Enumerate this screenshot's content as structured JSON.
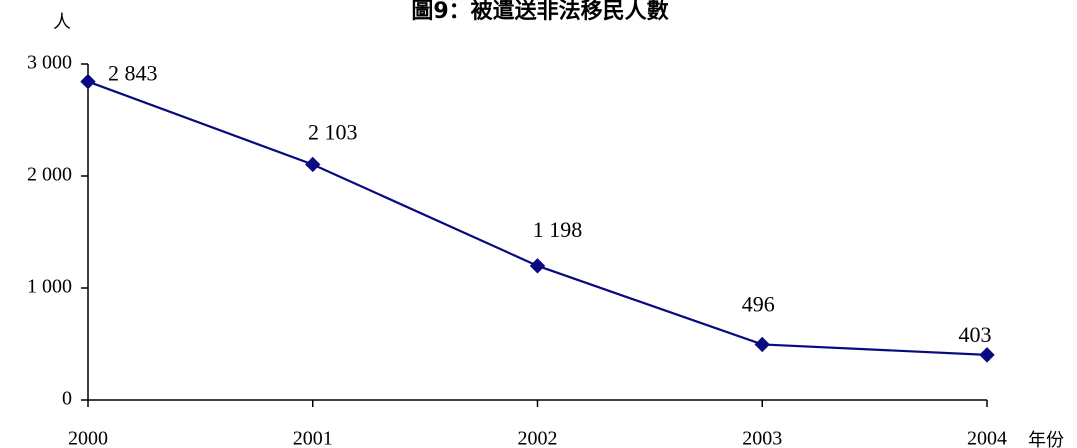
{
  "chart_data": {
    "type": "line",
    "title": "圖9：被遣送非法移民人數",
    "ylabel": "人",
    "xlabel": "年份",
    "x": [
      "2000",
      "2001",
      "2002",
      "2003",
      "2004"
    ],
    "series": [
      {
        "values": [
          2843,
          2103,
          1198,
          496,
          403
        ],
        "labels": [
          "2 843",
          "2 103",
          "1 198",
          "496",
          "403"
        ],
        "color": "#0a0a80"
      }
    ],
    "ylim": [
      0,
      3000
    ],
    "yticks": [
      0,
      1000,
      2000,
      3000
    ],
    "ytick_labels": [
      "0",
      "1 000",
      "2 000",
      "3 000"
    ],
    "grid": false,
    "legend": "none"
  }
}
